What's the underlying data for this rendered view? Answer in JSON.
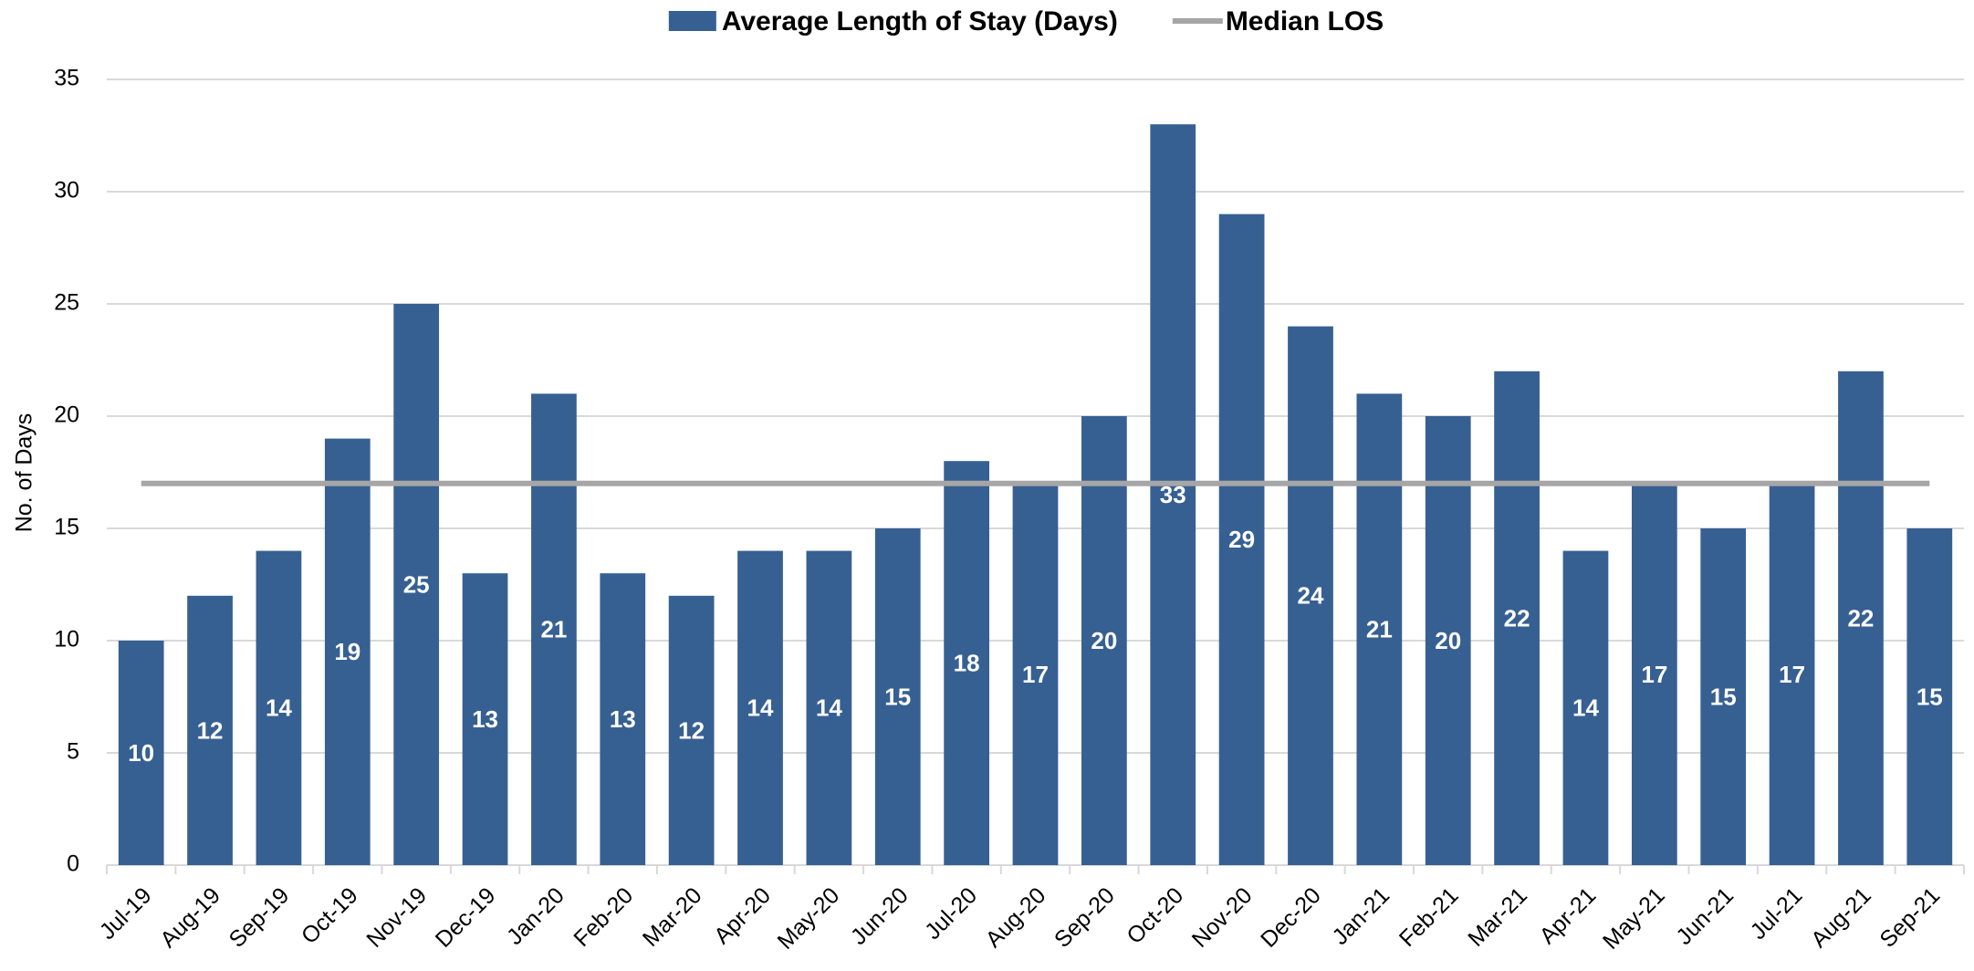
{
  "chart_data": {
    "type": "bar",
    "categories": [
      "Jul-19",
      "Aug-19",
      "Sep-19",
      "Oct-19",
      "Nov-19",
      "Dec-19",
      "Jan-20",
      "Feb-20",
      "Mar-20",
      "Apr-20",
      "May-20",
      "Jun-20",
      "Jul-20",
      "Aug-20",
      "Sep-20",
      "Oct-20",
      "Nov-20",
      "Dec-20",
      "Jan-21",
      "Feb-21",
      "Mar-21",
      "Apr-21",
      "May-21",
      "Jun-21",
      "Jul-21",
      "Aug-21",
      "Sep-21"
    ],
    "series": [
      {
        "name": "Average Length of Stay (Days)",
        "type": "bar",
        "color": "#376092",
        "values": [
          10,
          12,
          14,
          19,
          25,
          13,
          21,
          13,
          12,
          14,
          14,
          15,
          18,
          17,
          20,
          33,
          29,
          24,
          21,
          20,
          22,
          14,
          17,
          15,
          17,
          22,
          15
        ]
      },
      {
        "name": "Median LOS",
        "type": "line",
        "color": "#a6a6a6",
        "values": [
          17,
          17,
          17,
          17,
          17,
          17,
          17,
          17,
          17,
          17,
          17,
          17,
          17,
          17,
          17,
          17,
          17,
          17,
          17,
          17,
          17,
          17,
          17,
          17,
          17,
          17,
          17
        ]
      }
    ],
    "ylabel": "No. of Days",
    "ylim": [
      0,
      35
    ],
    "yticks": [
      0,
      5,
      10,
      15,
      20,
      25,
      30,
      35
    ],
    "grid": true,
    "legend": "top"
  }
}
